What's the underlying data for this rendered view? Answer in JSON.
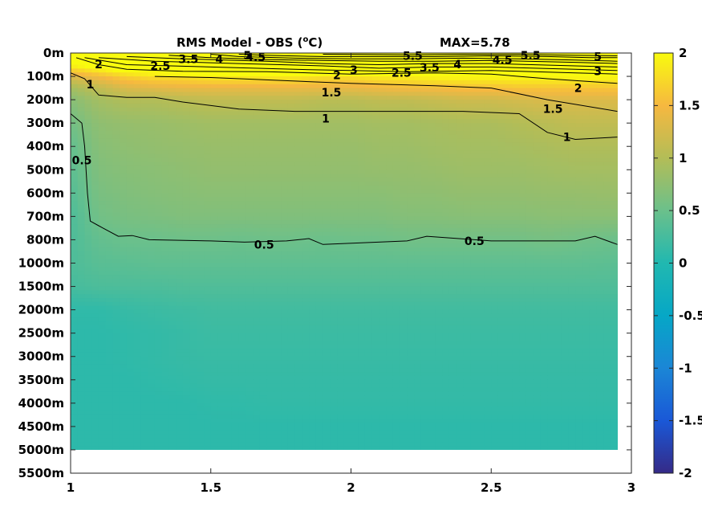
{
  "chart_data": {
    "type": "heatmap",
    "title": "RMS Model - OBS (°C)",
    "title_main": "RMS Model - OBS (",
    "title_sup": "o",
    "title_tail": "C)",
    "max_label": "MAX=5.78",
    "xlim": [
      1,
      3
    ],
    "x_ticks": [
      1,
      1.5,
      2,
      2.5,
      3
    ],
    "x_tick_labels": [
      "1",
      "1.5",
      "2",
      "2.5",
      "3"
    ],
    "data_x_range": [
      1,
      2.95
    ],
    "depth_labels": [
      "0m",
      "100m",
      "200m",
      "300m",
      "400m",
      "500m",
      "600m",
      "700m",
      "800m",
      "1000m",
      "1500m",
      "2000m",
      "2500m",
      "3000m",
      "3500m",
      "4000m",
      "4500m",
      "5000m",
      "5500m"
    ],
    "data_depth_range": [
      "0m",
      "5000m"
    ],
    "colorbar": {
      "colormap": "parula",
      "clim": [
        -2,
        2
      ],
      "ticks": [
        2,
        1.5,
        1,
        0.5,
        0,
        -0.5,
        -1,
        -1.5,
        -2
      ],
      "tick_labels": [
        "2",
        "1.5",
        "1",
        "0.5",
        "0",
        "-0.5",
        "-1",
        "-1.5",
        "-2"
      ]
    },
    "x_samples": [
      1.0,
      1.1,
      1.2,
      1.3,
      1.4,
      1.5,
      1.6,
      1.7,
      1.8,
      1.9,
      2.0,
      2.1,
      2.2,
      2.3,
      2.4,
      2.5,
      2.6,
      2.7,
      2.8,
      2.95
    ],
    "depth_index_samples": [
      0,
      0.5,
      1,
      1.5,
      2,
      3,
      4,
      5,
      6,
      7,
      8,
      9,
      10,
      11,
      12,
      13,
      14,
      15,
      16,
      17
    ],
    "values": [
      [
        5,
        5,
        5,
        5,
        5,
        5,
        5,
        5,
        5,
        5,
        5,
        5,
        5,
        5,
        5,
        5,
        5,
        5,
        5,
        5
      ],
      [
        2.0,
        2.2,
        2.4,
        2.6,
        2.8,
        2.9,
        2.9,
        3.0,
        3.0,
        2.9,
        2.8,
        2.8,
        2.9,
        3.0,
        3.0,
        3.1,
        3.1,
        3.1,
        3.1,
        3.0
      ],
      [
        1.3,
        1.5,
        1.7,
        1.8,
        1.8,
        1.9,
        1.9,
        1.9,
        1.9,
        1.8,
        1.8,
        1.9,
        1.9,
        2.0,
        2.0,
        2.0,
        2.0,
        2.0,
        2.0,
        2.0
      ],
      [
        0.9,
        1.1,
        1.3,
        1.35,
        1.4,
        1.4,
        1.4,
        1.4,
        1.4,
        1.4,
        1.4,
        1.45,
        1.5,
        1.5,
        1.55,
        1.55,
        1.6,
        1.6,
        1.6,
        1.6
      ],
      [
        0.7,
        0.9,
        1.0,
        1.0,
        1.05,
        1.1,
        1.1,
        1.1,
        1.1,
        1.05,
        1.05,
        1.1,
        1.1,
        1.15,
        1.2,
        1.2,
        1.25,
        1.3,
        1.3,
        1.3
      ],
      [
        0.55,
        0.75,
        0.8,
        0.82,
        0.85,
        0.88,
        0.88,
        0.88,
        0.88,
        0.88,
        0.88,
        0.9,
        0.9,
        0.92,
        0.95,
        0.95,
        1.0,
        1.05,
        1.1,
        1.1
      ],
      [
        0.45,
        0.7,
        0.75,
        0.78,
        0.8,
        0.82,
        0.82,
        0.82,
        0.82,
        0.82,
        0.82,
        0.85,
        0.85,
        0.88,
        0.9,
        0.9,
        0.92,
        0.95,
        0.98,
        0.98
      ],
      [
        0.4,
        0.65,
        0.7,
        0.72,
        0.75,
        0.78,
        0.78,
        0.78,
        0.78,
        0.78,
        0.78,
        0.8,
        0.8,
        0.82,
        0.85,
        0.85,
        0.85,
        0.88,
        0.9,
        0.9
      ],
      [
        0.35,
        0.6,
        0.65,
        0.68,
        0.7,
        0.72,
        0.72,
        0.72,
        0.72,
        0.72,
        0.72,
        0.72,
        0.75,
        0.75,
        0.78,
        0.78,
        0.78,
        0.8,
        0.8,
        0.82
      ],
      [
        0.3,
        0.55,
        0.6,
        0.62,
        0.65,
        0.65,
        0.65,
        0.65,
        0.65,
        0.65,
        0.65,
        0.65,
        0.68,
        0.68,
        0.7,
        0.7,
        0.7,
        0.72,
        0.72,
        0.72
      ],
      [
        0.3,
        0.45,
        0.5,
        0.5,
        0.52,
        0.52,
        0.5,
        0.52,
        0.52,
        0.5,
        0.52,
        0.52,
        0.55,
        0.55,
        0.55,
        0.55,
        0.55,
        0.58,
        0.55,
        0.5
      ],
      [
        0.3,
        0.38,
        0.4,
        0.42,
        0.42,
        0.42,
        0.42,
        0.42,
        0.42,
        0.42,
        0.42,
        0.42,
        0.42,
        0.42,
        0.42,
        0.42,
        0.42,
        0.42,
        0.42,
        0.4
      ],
      [
        0.25,
        0.3,
        0.3,
        0.3,
        0.32,
        0.32,
        0.32,
        0.32,
        0.32,
        0.32,
        0.32,
        0.32,
        0.32,
        0.32,
        0.32,
        0.32,
        0.32,
        0.32,
        0.32,
        0.32
      ],
      [
        0.1,
        0.1,
        0.15,
        0.18,
        0.2,
        0.22,
        0.22,
        0.22,
        0.22,
        0.22,
        0.22,
        0.22,
        0.22,
        0.22,
        0.22,
        0.22,
        0.22,
        0.22,
        0.22,
        0.22
      ],
      [
        0.08,
        0.08,
        0.1,
        0.12,
        0.15,
        0.18,
        0.18,
        0.18,
        0.18,
        0.18,
        0.18,
        0.18,
        0.18,
        0.18,
        0.18,
        0.18,
        0.18,
        0.18,
        0.18,
        0.18
      ],
      [
        0.08,
        0.08,
        0.1,
        0.12,
        0.15,
        0.16,
        0.16,
        0.16,
        0.16,
        0.16,
        0.16,
        0.16,
        0.16,
        0.16,
        0.16,
        0.16,
        0.16,
        0.16,
        0.16,
        0.16
      ],
      [
        0.08,
        0.08,
        0.08,
        0.1,
        0.12,
        0.14,
        0.14,
        0.14,
        0.14,
        0.14,
        0.14,
        0.14,
        0.14,
        0.14,
        0.14,
        0.14,
        0.14,
        0.14,
        0.14,
        0.14
      ],
      [
        0.08,
        0.08,
        0.08,
        0.08,
        0.08,
        0.1,
        0.1,
        0.12,
        0.12,
        0.12,
        0.12,
        0.12,
        0.12,
        0.12,
        0.12,
        0.12,
        0.12,
        0.12,
        0.12,
        0.12
      ],
      [
        0.08,
        0.08,
        0.08,
        0.08,
        0.08,
        0.08,
        0.08,
        0.08,
        0.08,
        0.08,
        0.08,
        0.08,
        0.08,
        0.08,
        0.08,
        0.08,
        0.08,
        0.08,
        0.08,
        0.08
      ],
      [
        0.08,
        0.08,
        0.08,
        0.08,
        0.08,
        0.08,
        0.08,
        0.08,
        0.08,
        0.08,
        0.08,
        0.08,
        0.08,
        0.08,
        0.08,
        0.08,
        0.08,
        0.08,
        0.08,
        0.08
      ]
    ],
    "contour_levels": [
      0.5,
      1,
      1.5,
      2,
      2.5,
      3,
      3.5,
      4,
      4.5,
      5,
      5.5
    ],
    "contour_lines": [
      {
        "level": 0.5,
        "points": [
          [
            1.0,
            2.6
          ],
          [
            1.04,
            3.0
          ],
          [
            1.05,
            4.0
          ],
          [
            1.06,
            6.0
          ],
          [
            1.07,
            7.2
          ],
          [
            1.1,
            7.4
          ],
          [
            1.17,
            7.85
          ],
          [
            1.22,
            7.82
          ],
          [
            1.28,
            8.0
          ],
          [
            1.5,
            8.05
          ],
          [
            1.62,
            8.1
          ],
          [
            1.77,
            8.05
          ],
          [
            1.85,
            7.95
          ],
          [
            1.9,
            8.2
          ],
          [
            2.2,
            8.05
          ],
          [
            2.27,
            7.85
          ],
          [
            2.5,
            8.05
          ],
          [
            2.8,
            8.05
          ],
          [
            2.87,
            7.85
          ],
          [
            2.95,
            8.2
          ]
        ]
      },
      {
        "level": 1,
        "points": [
          [
            1.0,
            0.85
          ],
          [
            1.05,
            1.1
          ],
          [
            1.1,
            1.8
          ],
          [
            1.2,
            1.9
          ],
          [
            1.3,
            1.9
          ],
          [
            1.4,
            2.1
          ],
          [
            1.6,
            2.4
          ],
          [
            1.8,
            2.5
          ],
          [
            2.0,
            2.5
          ],
          [
            2.2,
            2.5
          ],
          [
            2.4,
            2.5
          ],
          [
            2.6,
            2.6
          ],
          [
            2.7,
            3.4
          ],
          [
            2.8,
            3.7
          ],
          [
            2.95,
            3.6
          ]
        ]
      },
      {
        "level": 1.5,
        "points": [
          [
            1.3,
            1.0
          ],
          [
            1.5,
            1.05
          ],
          [
            1.8,
            1.2
          ],
          [
            2.0,
            1.3
          ],
          [
            2.3,
            1.4
          ],
          [
            2.5,
            1.5
          ],
          [
            2.7,
            2.0
          ],
          [
            2.95,
            2.5
          ]
        ]
      },
      {
        "level": 2,
        "points": [
          [
            1.02,
            0.2
          ],
          [
            1.1,
            0.5
          ],
          [
            1.2,
            0.7
          ],
          [
            1.4,
            0.78
          ],
          [
            1.7,
            0.8
          ],
          [
            2.0,
            0.9
          ],
          [
            2.3,
            0.85
          ],
          [
            2.5,
            0.9
          ],
          [
            2.7,
            1.1
          ],
          [
            2.95,
            1.3
          ]
        ]
      },
      {
        "level": 2.5,
        "points": [
          [
            1.05,
            0.2
          ],
          [
            1.2,
            0.5
          ],
          [
            1.5,
            0.6
          ],
          [
            1.8,
            0.7
          ],
          [
            2.0,
            0.75
          ],
          [
            2.2,
            0.8
          ],
          [
            2.5,
            0.75
          ],
          [
            2.8,
            0.85
          ],
          [
            2.95,
            0.9
          ]
        ]
      },
      {
        "level": 3,
        "points": [
          [
            1.1,
            0.2
          ],
          [
            1.3,
            0.35
          ],
          [
            1.6,
            0.45
          ],
          [
            1.9,
            0.55
          ],
          [
            2.1,
            0.65
          ],
          [
            2.3,
            0.6
          ],
          [
            2.5,
            0.6
          ],
          [
            2.8,
            0.7
          ],
          [
            2.95,
            0.75
          ]
        ]
      },
      {
        "level": 3.5,
        "points": [
          [
            1.2,
            0.15
          ],
          [
            1.4,
            0.25
          ],
          [
            1.7,
            0.35
          ],
          [
            1.9,
            0.45
          ],
          [
            2.1,
            0.5
          ],
          [
            2.3,
            0.45
          ],
          [
            2.5,
            0.45
          ],
          [
            2.8,
            0.55
          ],
          [
            2.95,
            0.6
          ]
        ]
      },
      {
        "level": 4,
        "points": [
          [
            1.35,
            0.1
          ],
          [
            1.5,
            0.2
          ],
          [
            1.7,
            0.28
          ],
          [
            1.9,
            0.32
          ],
          [
            2.1,
            0.35
          ],
          [
            2.3,
            0.35
          ],
          [
            2.5,
            0.32
          ],
          [
            2.8,
            0.4
          ],
          [
            2.95,
            0.45
          ]
        ]
      },
      {
        "level": 4.5,
        "points": [
          [
            1.5,
            0.05
          ],
          [
            1.6,
            0.15
          ],
          [
            1.8,
            0.22
          ],
          [
            2.0,
            0.25
          ],
          [
            2.2,
            0.25
          ],
          [
            2.4,
            0.22
          ],
          [
            2.6,
            0.25
          ],
          [
            2.8,
            0.3
          ],
          [
            2.95,
            0.35
          ]
        ]
      },
      {
        "level": 5,
        "points": [
          [
            1.6,
            0.05
          ],
          [
            1.7,
            0.1
          ],
          [
            1.9,
            0.15
          ],
          [
            2.1,
            0.15
          ],
          [
            2.3,
            0.15
          ],
          [
            2.5,
            0.12
          ],
          [
            2.7,
            0.15
          ],
          [
            2.85,
            0.2
          ],
          [
            2.95,
            0.2
          ]
        ]
      },
      {
        "level": 5.5,
        "points": [
          [
            1.9,
            0.05
          ],
          [
            2.2,
            0.08
          ],
          [
            2.4,
            0.06
          ],
          [
            2.6,
            0.06
          ],
          [
            2.8,
            0.1
          ],
          [
            2.95,
            0.12
          ]
        ]
      }
    ],
    "contour_labels": [
      {
        "text": "2",
        "x": 1.1,
        "y": 0.48
      },
      {
        "text": "2.5",
        "x": 1.32,
        "y": 0.55
      },
      {
        "text": "3.5",
        "x": 1.42,
        "y": 0.25
      },
      {
        "text": "4",
        "x": 1.53,
        "y": 0.25
      },
      {
        "text": "5",
        "x": 1.63,
        "y": 0.1
      },
      {
        "text": "4.5",
        "x": 1.66,
        "y": 0.18
      },
      {
        "text": "1",
        "x": 1.07,
        "y": 1.35
      },
      {
        "text": "0.5",
        "x": 1.04,
        "y": 4.6
      },
      {
        "text": "1.5",
        "x": 1.93,
        "y": 1.68
      },
      {
        "text": "1",
        "x": 1.91,
        "y": 2.8
      },
      {
        "text": "2",
        "x": 1.95,
        "y": 0.95
      },
      {
        "text": "3",
        "x": 2.01,
        "y": 0.72
      },
      {
        "text": "2.5",
        "x": 2.18,
        "y": 0.85
      },
      {
        "text": "3.5",
        "x": 2.28,
        "y": 0.62
      },
      {
        "text": "5.5",
        "x": 2.22,
        "y": 0.12
      },
      {
        "text": "4",
        "x": 2.38,
        "y": 0.48
      },
      {
        "text": "4.5",
        "x": 2.54,
        "y": 0.3
      },
      {
        "text": "5.5",
        "x": 2.64,
        "y": 0.1
      },
      {
        "text": "5",
        "x": 2.88,
        "y": 0.15
      },
      {
        "text": "3",
        "x": 2.88,
        "y": 0.78
      },
      {
        "text": "2",
        "x": 2.81,
        "y": 1.5
      },
      {
        "text": "1.5",
        "x": 2.72,
        "y": 2.4
      },
      {
        "text": "1",
        "x": 2.77,
        "y": 3.6
      },
      {
        "text": "0.5",
        "x": 1.69,
        "y": 8.2
      },
      {
        "text": "0.5",
        "x": 2.44,
        "y": 8.05
      }
    ]
  }
}
